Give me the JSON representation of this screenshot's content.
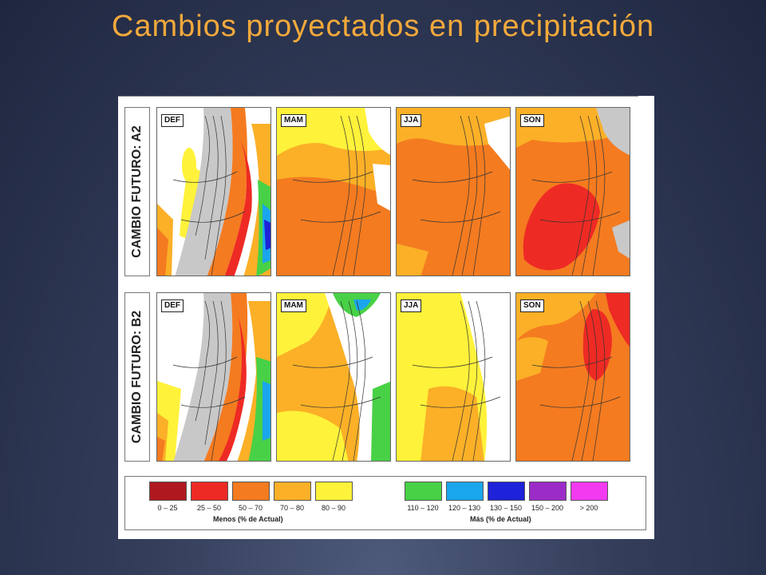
{
  "slide": {
    "title": "Cambios proyectados en precipitación"
  },
  "rows": [
    {
      "label": "CAMBIO FUTURO: A2"
    },
    {
      "label": "CAMBIO FUTURO: B2"
    }
  ],
  "panels": [
    {
      "season": "DEF",
      "scenario": "A2"
    },
    {
      "season": "MAM",
      "scenario": "A2"
    },
    {
      "season": "JJA",
      "scenario": "A2"
    },
    {
      "season": "SON",
      "scenario": "A2"
    },
    {
      "season": "DEF",
      "scenario": "B2"
    },
    {
      "season": "MAM",
      "scenario": "B2"
    },
    {
      "season": "JJA",
      "scenario": "B2"
    },
    {
      "season": "SON",
      "scenario": "B2"
    }
  ],
  "legend": {
    "menos": {
      "caption": "Menos (% de Actual)",
      "items": [
        {
          "range": "0 – 25",
          "color": "#b01820"
        },
        {
          "range": "25 – 50",
          "color": "#ee2a24"
        },
        {
          "range": "50 – 70",
          "color": "#f47b20"
        },
        {
          "range": "70 – 80",
          "color": "#fbb027"
        },
        {
          "range": "80 – 90",
          "color": "#fff23a"
        }
      ]
    },
    "mas": {
      "caption": "Más (% de Actual)",
      "items": [
        {
          "range": "110 – 120",
          "color": "#48d146"
        },
        {
          "range": "120 – 130",
          "color": "#1aa6ec"
        },
        {
          "range": "130 – 150",
          "color": "#1e22d8"
        },
        {
          "range": "150 – 200",
          "color": "#9c2cc8"
        },
        {
          "range": "> 200",
          "color": "#f23af0"
        }
      ]
    }
  },
  "colors": {
    "title": "#f2a93b",
    "no_data": "#c8c8c8",
    "near_zero": "#ffffff"
  }
}
